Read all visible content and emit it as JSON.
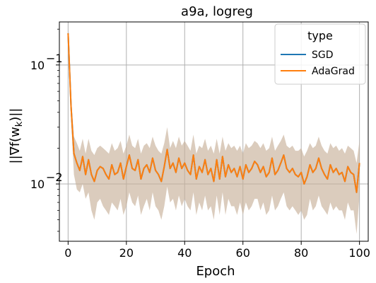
{
  "chart_data": {
    "type": "line",
    "title": "a9a, logreg",
    "xlabel": "Epoch",
    "ylabel": "||∇f(w_k)||",
    "ylabel_main": "||∇f(w",
    "ylabel_sub": "k",
    "ylabel_end": ")||",
    "xlim": [
      -3,
      103
    ],
    "ylim": [
      0.0033,
      0.23
    ],
    "yscale": "log",
    "grid": true,
    "x_ticks": [
      0,
      20,
      40,
      60,
      80,
      100
    ],
    "x_tick_labels": [
      "0",
      "20",
      "40",
      "60",
      "80",
      "100"
    ],
    "y_ticks": [
      0.01,
      0.1
    ],
    "y_tick_base": [
      "10",
      "10"
    ],
    "y_tick_exp": [
      "−2",
      "−1"
    ],
    "legend": {
      "title": "type",
      "placement": "top-right",
      "entries": [
        "SGD",
        "AdaGrad"
      ]
    },
    "band_color": "#c8b09a",
    "series": [
      {
        "name": "SGD",
        "color": "#1f77b4",
        "values": [
          0.185,
          0.045,
          0.018,
          0.015,
          0.013,
          0.017,
          0.012,
          0.016,
          0.012,
          0.0105,
          0.013,
          0.014,
          0.0135,
          0.012,
          0.011,
          0.0145,
          0.012,
          0.0125,
          0.015,
          0.011,
          0.014,
          0.0175,
          0.0135,
          0.013,
          0.016,
          0.011,
          0.0135,
          0.0145,
          0.0125,
          0.0165,
          0.013,
          0.012,
          0.0105,
          0.014,
          0.0195,
          0.0135,
          0.015,
          0.0125,
          0.0165,
          0.0135,
          0.015,
          0.013,
          0.012,
          0.0175,
          0.011,
          0.014,
          0.0125,
          0.016,
          0.012,
          0.0135,
          0.0105,
          0.016,
          0.011,
          0.017,
          0.0115,
          0.0145,
          0.0125,
          0.0135,
          0.0115,
          0.014,
          0.011,
          0.0145,
          0.0125,
          0.0135,
          0.0155,
          0.0145,
          0.0125,
          0.014,
          0.0115,
          0.0125,
          0.0165,
          0.012,
          0.013,
          0.015,
          0.0175,
          0.0135,
          0.0125,
          0.0135,
          0.012,
          0.0115,
          0.0125,
          0.01,
          0.0115,
          0.0145,
          0.0125,
          0.0135,
          0.0165,
          0.0135,
          0.012,
          0.011,
          0.0145,
          0.0125,
          0.0135,
          0.012,
          0.0125,
          0.0105,
          0.014,
          0.0125,
          0.012,
          0.0085,
          0.015
        ]
      },
      {
        "name": "AdaGrad",
        "color": "#ff7f0e",
        "values": [
          0.185,
          0.045,
          0.018,
          0.015,
          0.013,
          0.017,
          0.012,
          0.016,
          0.012,
          0.0105,
          0.013,
          0.014,
          0.0135,
          0.012,
          0.011,
          0.0145,
          0.012,
          0.0125,
          0.015,
          0.011,
          0.014,
          0.0175,
          0.0135,
          0.013,
          0.016,
          0.011,
          0.0135,
          0.0145,
          0.0125,
          0.0165,
          0.013,
          0.012,
          0.0105,
          0.014,
          0.0195,
          0.0135,
          0.015,
          0.0125,
          0.0165,
          0.0135,
          0.015,
          0.013,
          0.012,
          0.0175,
          0.011,
          0.014,
          0.0125,
          0.016,
          0.012,
          0.0135,
          0.0105,
          0.016,
          0.011,
          0.017,
          0.0115,
          0.0145,
          0.0125,
          0.0135,
          0.0115,
          0.014,
          0.011,
          0.0145,
          0.0125,
          0.0135,
          0.0155,
          0.0145,
          0.0125,
          0.014,
          0.0115,
          0.0125,
          0.0165,
          0.012,
          0.013,
          0.015,
          0.0175,
          0.0135,
          0.0125,
          0.0135,
          0.012,
          0.0115,
          0.0125,
          0.01,
          0.0115,
          0.0145,
          0.0125,
          0.0135,
          0.0165,
          0.0135,
          0.012,
          0.011,
          0.0145,
          0.0125,
          0.0135,
          0.012,
          0.0125,
          0.0105,
          0.014,
          0.0125,
          0.012,
          0.0085,
          0.015
        ]
      }
    ],
    "band": {
      "lower": [
        0.18,
        0.035,
        0.012,
        0.009,
        0.0085,
        0.01,
        0.0075,
        0.0085,
        0.006,
        0.005,
        0.007,
        0.0075,
        0.0065,
        0.006,
        0.0055,
        0.007,
        0.0065,
        0.006,
        0.0075,
        0.0055,
        0.0065,
        0.0085,
        0.007,
        0.0065,
        0.008,
        0.0055,
        0.0065,
        0.0075,
        0.006,
        0.0085,
        0.0065,
        0.006,
        0.005,
        0.0065,
        0.0095,
        0.007,
        0.0075,
        0.006,
        0.008,
        0.0065,
        0.0075,
        0.0065,
        0.006,
        0.0085,
        0.0055,
        0.007,
        0.006,
        0.008,
        0.006,
        0.0065,
        0.005,
        0.008,
        0.0055,
        0.0085,
        0.0055,
        0.0075,
        0.0065,
        0.0065,
        0.0055,
        0.007,
        0.0055,
        0.007,
        0.006,
        0.0065,
        0.0075,
        0.0075,
        0.006,
        0.007,
        0.0055,
        0.006,
        0.008,
        0.006,
        0.0065,
        0.0075,
        0.0085,
        0.0065,
        0.006,
        0.0065,
        0.006,
        0.0055,
        0.006,
        0.005,
        0.0055,
        0.0075,
        0.006,
        0.0065,
        0.008,
        0.0065,
        0.006,
        0.0055,
        0.007,
        0.006,
        0.0065,
        0.006,
        0.006,
        0.005,
        0.007,
        0.006,
        0.006,
        0.0038,
        0.008
      ],
      "upper": [
        0.19,
        0.055,
        0.025,
        0.022,
        0.019,
        0.024,
        0.018,
        0.024,
        0.019,
        0.0175,
        0.02,
        0.021,
        0.02,
        0.019,
        0.018,
        0.022,
        0.019,
        0.02,
        0.023,
        0.018,
        0.021,
        0.026,
        0.021,
        0.02,
        0.024,
        0.018,
        0.021,
        0.022,
        0.02,
        0.025,
        0.021,
        0.019,
        0.018,
        0.022,
        0.03,
        0.02,
        0.023,
        0.02,
        0.025,
        0.021,
        0.023,
        0.021,
        0.019,
        0.026,
        0.018,
        0.021,
        0.02,
        0.024,
        0.019,
        0.021,
        0.018,
        0.024,
        0.018,
        0.025,
        0.019,
        0.022,
        0.02,
        0.021,
        0.019,
        0.021,
        0.018,
        0.022,
        0.02,
        0.021,
        0.023,
        0.022,
        0.02,
        0.022,
        0.019,
        0.02,
        0.025,
        0.019,
        0.021,
        0.023,
        0.026,
        0.021,
        0.02,
        0.021,
        0.019,
        0.019,
        0.02,
        0.017,
        0.019,
        0.022,
        0.02,
        0.021,
        0.025,
        0.021,
        0.019,
        0.018,
        0.022,
        0.02,
        0.021,
        0.019,
        0.02,
        0.018,
        0.021,
        0.02,
        0.019,
        0.015,
        0.023
      ]
    }
  }
}
